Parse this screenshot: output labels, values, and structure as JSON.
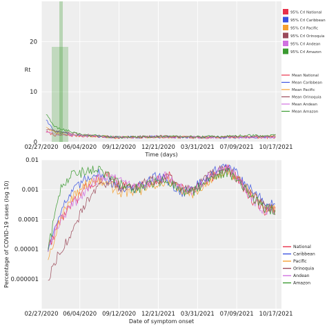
{
  "chart_data": [
    {
      "type": "line",
      "panel": "top",
      "xlabel": "Time (days)",
      "ylabel": "Rt",
      "ylim": [
        0,
        28
      ],
      "yticks": [
        0,
        10,
        20
      ],
      "x_tick_labels": [
        "02/27/2020",
        "06/04/2020",
        "09/12/2020",
        "12/21/2020",
        "03/31/2021",
        "07/09/2021",
        "10/17/2021"
      ],
      "x_range": [
        "2020-02-27",
        "2021-10-31"
      ],
      "grid": true,
      "legend_position": "right",
      "ci_legend": [
        "95% CrI National",
        "95% CrI Caribbean",
        "95% CrI Pacific",
        "95% CrI Orinoquia",
        "95% CrI Andean",
        "95% CrI Amazon"
      ],
      "mean_legend": [
        "Mean National",
        "Mean Caribbean",
        "Mean Pacific",
        "Mean Orinoquia",
        "Mean Andean",
        "Mean Amazon"
      ],
      "colors": [
        "#e8304a",
        "#3a52e0",
        "#f5a030",
        "#9b4a5a",
        "#d070e0",
        "#3a9a30"
      ],
      "series": [
        {
          "name": "Mean National",
          "x": [
            "2020-03-10",
            "2020-04-01",
            "2020-06-04",
            "2020-09-12",
            "2020-12-21",
            "2021-03-31",
            "2021-07-09",
            "2021-10-17"
          ],
          "y": [
            2.0,
            1.4,
            1.2,
            0.9,
            1.0,
            0.9,
            1.0,
            0.9
          ]
        },
        {
          "name": "Mean Caribbean",
          "x": [
            "2020-03-10",
            "2020-04-01",
            "2020-06-04",
            "2020-09-12",
            "2020-12-21",
            "2021-03-31",
            "2021-07-09",
            "2021-10-17"
          ],
          "y": [
            4.5,
            2.0,
            1.3,
            0.9,
            1.0,
            0.9,
            0.9,
            1.0
          ]
        },
        {
          "name": "Mean Pacific",
          "x": [
            "2020-03-10",
            "2020-04-01",
            "2020-06-04",
            "2020-09-12",
            "2020-12-21",
            "2021-03-31",
            "2021-07-09",
            "2021-10-17"
          ],
          "y": [
            3.0,
            1.8,
            1.3,
            0.9,
            1.0,
            0.9,
            1.0,
            1.1
          ]
        },
        {
          "name": "Mean Orinoquia",
          "x": [
            "2020-03-10",
            "2020-04-01",
            "2020-06-04",
            "2020-09-12",
            "2020-12-21",
            "2021-03-31",
            "2021-07-09",
            "2021-10-17"
          ],
          "y": [
            2.5,
            2.2,
            1.5,
            0.9,
            1.1,
            0.9,
            1.0,
            1.2
          ]
        },
        {
          "name": "Mean Andean",
          "x": [
            "2020-03-10",
            "2020-04-01",
            "2020-06-04",
            "2020-09-12",
            "2020-12-21",
            "2021-03-31",
            "2021-07-09",
            "2021-10-17"
          ],
          "y": [
            2.2,
            1.6,
            1.3,
            0.9,
            1.0,
            0.9,
            0.9,
            1.0
          ]
        },
        {
          "name": "Mean Amazon",
          "x": [
            "2020-03-10",
            "2020-04-01",
            "2020-06-04",
            "2020-09-12",
            "2020-12-21",
            "2021-03-31",
            "2021-07-09",
            "2021-10-17"
          ],
          "y": [
            5.5,
            3.0,
            1.5,
            0.9,
            1.1,
            1.0,
            1.2,
            1.3
          ]
        }
      ]
    },
    {
      "type": "line",
      "panel": "bottom",
      "xlabel": "Date of symptom onset",
      "ylabel": "Percentage of COVID-19 cases (log 10)",
      "yscale": "log",
      "ylim": [
        1e-07,
        0.01
      ],
      "y_tick_labels": [
        "0.01",
        "0.001",
        "0.0001",
        "0.00001",
        "0.000001"
      ],
      "x_tick_labels": [
        "02/27/2020",
        "06/04/2020",
        "09/12/2020",
        "12/21/2021",
        "03/31/2021",
        "07/09/2021",
        "10/17/2021"
      ],
      "x_range": [
        "2020-02-27",
        "2021-10-31"
      ],
      "grid": true,
      "legend_position": "right",
      "legend": [
        "National",
        "Caribbean",
        "Pacific",
        "Orinoquia",
        "Andean",
        "Amazon"
      ],
      "colors": [
        "#e8304a",
        "#3a52e0",
        "#f5a030",
        "#9b4a5a",
        "#d070e0",
        "#3a9a30"
      ],
      "series": [
        {
          "name": "National",
          "x": [
            "2020-03-15",
            "2020-04-15",
            "2020-05-15",
            "2020-06-15",
            "2020-07-15",
            "2020-08-15",
            "2020-09-15",
            "2020-10-15",
            "2020-11-15",
            "2020-12-15",
            "2021-01-15",
            "2021-02-15",
            "2021-03-15",
            "2021-04-15",
            "2021-05-15",
            "2021-06-15",
            "2021-07-15",
            "2021-08-15",
            "2021-09-15",
            "2021-10-15"
          ],
          "y": [
            1e-05,
            0.0001,
            0.0003,
            0.001,
            0.002,
            0.003,
            0.0015,
            0.0012,
            0.0015,
            0.002,
            0.003,
            0.0012,
            0.0008,
            0.002,
            0.003,
            0.005,
            0.002,
            0.0005,
            0.0002,
            0.0002
          ]
        },
        {
          "name": "Caribbean",
          "x": [
            "2020-03-15",
            "2020-04-15",
            "2020-05-15",
            "2020-06-15",
            "2020-07-15",
            "2020-08-15",
            "2020-09-15",
            "2020-10-15",
            "2020-11-15",
            "2020-12-15",
            "2021-01-15",
            "2021-02-15",
            "2021-03-15",
            "2021-04-15",
            "2021-05-15",
            "2021-06-15",
            "2021-07-15",
            "2021-08-15",
            "2021-09-15",
            "2021-10-15"
          ],
          "y": [
            1e-05,
            0.0002,
            0.0008,
            0.002,
            0.004,
            0.002,
            0.0012,
            0.001,
            0.0015,
            0.003,
            0.002,
            0.0008,
            0.001,
            0.002,
            0.004,
            0.006,
            0.003,
            0.001,
            0.0004,
            0.0003
          ]
        },
        {
          "name": "Pacific",
          "x": [
            "2020-03-15",
            "2020-04-15",
            "2020-05-15",
            "2020-06-15",
            "2020-07-15",
            "2020-08-15",
            "2020-09-15",
            "2020-10-15",
            "2020-11-15",
            "2020-12-15",
            "2021-01-15",
            "2021-02-15",
            "2021-03-15",
            "2021-04-15",
            "2021-05-15",
            "2021-06-15",
            "2021-07-15",
            "2021-08-15",
            "2021-09-15",
            "2021-10-15"
          ],
          "y": [
            5e-06,
            0.0001,
            0.0005,
            0.0015,
            0.002,
            0.0015,
            0.0008,
            0.0009,
            0.001,
            0.0015,
            0.002,
            0.0009,
            0.0007,
            0.0015,
            0.003,
            0.004,
            0.002,
            0.0008,
            0.0003,
            0.0002
          ]
        },
        {
          "name": "Orinoquia",
          "x": [
            "2020-03-15",
            "2020-04-15",
            "2020-05-15",
            "2020-06-15",
            "2020-07-15",
            "2020-08-15",
            "2020-09-15",
            "2020-10-15",
            "2020-11-15",
            "2020-12-15",
            "2021-01-15",
            "2021-02-15",
            "2021-03-15",
            "2021-04-15",
            "2021-05-15",
            "2021-06-15",
            "2021-07-15",
            "2021-08-15",
            "2021-09-15",
            "2021-10-15"
          ],
          "y": [
            1e-06,
            1e-05,
            3e-05,
            0.0003,
            0.001,
            0.002,
            0.0012,
            0.0012,
            0.0018,
            0.002,
            0.0025,
            0.0012,
            0.001,
            0.002,
            0.004,
            0.005,
            0.002,
            0.0008,
            0.0003,
            0.0002
          ]
        },
        {
          "name": "Andean",
          "x": [
            "2020-03-15",
            "2020-04-15",
            "2020-05-15",
            "2020-06-15",
            "2020-07-15",
            "2020-08-15",
            "2020-09-15",
            "2020-10-15",
            "2020-11-15",
            "2020-12-15",
            "2021-01-15",
            "2021-02-15",
            "2021-03-15",
            "2021-04-15",
            "2021-05-15",
            "2021-06-15",
            "2021-07-15",
            "2021-08-15",
            "2021-09-15",
            "2021-10-15"
          ],
          "y": [
            1e-05,
            0.0001,
            0.0003,
            0.0008,
            0.002,
            0.003,
            0.0018,
            0.0013,
            0.0016,
            0.002,
            0.003,
            0.0012,
            0.0009,
            0.002,
            0.004,
            0.005,
            0.002,
            0.0006,
            0.0002,
            0.00015
          ]
        },
        {
          "name": "Amazon",
          "x": [
            "2020-03-15",
            "2020-04-15",
            "2020-05-15",
            "2020-06-15",
            "2020-07-15",
            "2020-08-15",
            "2020-09-15",
            "2020-10-15",
            "2020-11-15",
            "2020-12-15",
            "2021-01-15",
            "2021-02-15",
            "2021-03-15",
            "2021-04-15",
            "2021-05-15",
            "2021-06-15",
            "2021-07-15",
            "2021-08-15",
            "2021-09-15",
            "2021-10-15"
          ],
          "y": [
            1e-05,
            0.001,
            0.003,
            0.004,
            0.005,
            0.003,
            0.0015,
            0.001,
            0.0012,
            0.0018,
            0.002,
            0.001,
            0.0008,
            0.0015,
            0.003,
            0.004,
            0.002,
            0.0006,
            0.00025,
            0.0002
          ]
        }
      ]
    }
  ]
}
